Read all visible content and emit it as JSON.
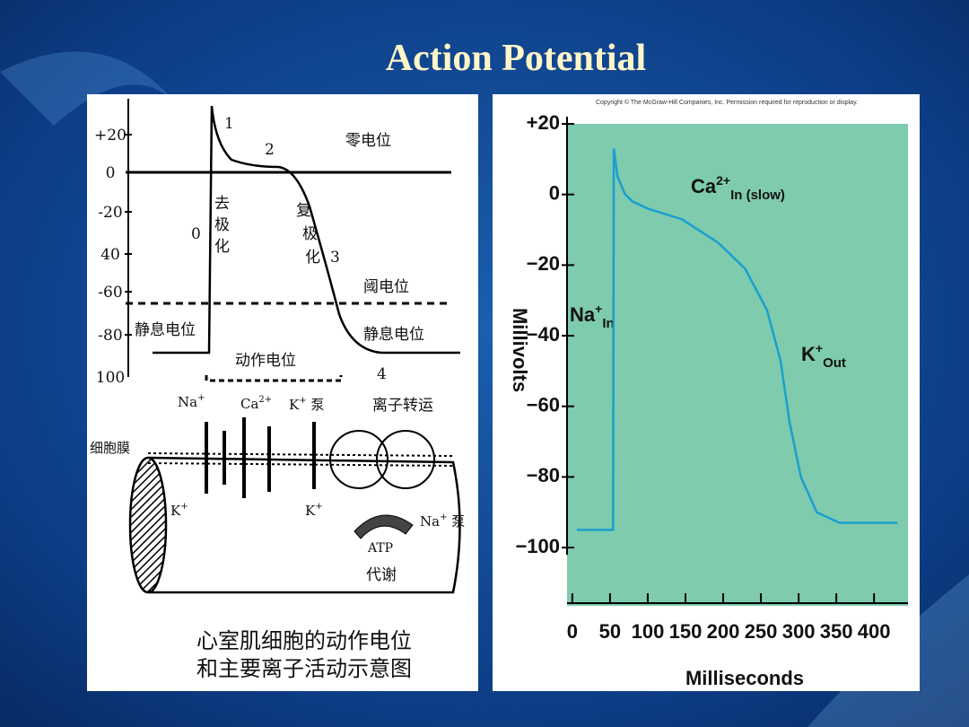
{
  "title": "Action Potential",
  "left_figure": {
    "y_labels": [
      "+20",
      "0",
      "-20",
      "40",
      "-60",
      "-80",
      "100"
    ],
    "phase_labels": [
      "1",
      "2",
      "0",
      "3",
      "4"
    ],
    "zero_potential": "零电位",
    "depolarization": [
      "去",
      "极",
      "化"
    ],
    "repolarization": [
      "复",
      "极",
      "化"
    ],
    "threshold": "阈电位",
    "resting_left": "静息电位",
    "resting_right": "静息电位",
    "action_potential": "动作电位",
    "ion_transport": "离子转运",
    "membrane": "细胞膜",
    "na": {
      "base": "Na",
      "sup": "+"
    },
    "ca": {
      "base": "Ca",
      "sup": "2+"
    },
    "k_pump": {
      "base": "K",
      "sup": "+",
      "rest": " 泵"
    },
    "k_left": {
      "base": "K",
      "sup": "+"
    },
    "k_right": {
      "base": "K",
      "sup": "+"
    },
    "na_pump": {
      "base": "Na",
      "sup": "+",
      "rest": " 泵"
    },
    "atp": "ATP",
    "metabolism": "代谢",
    "caption": [
      "心室肌细胞的动作电位",
      "和主要离子活动示意图"
    ]
  },
  "chart_data": {
    "type": "line",
    "copyright": "Copyright © The McGraw-Hill Companies, Inc. Permission required for reproduction or display.",
    "x_label": "Milliseconds",
    "y_label": "Millivolts",
    "x": [
      6,
      53,
      54,
      55,
      60,
      70,
      80,
      100,
      145,
      193,
      229,
      258,
      276,
      288,
      303,
      324,
      354,
      431
    ],
    "series": [
      {
        "color": "#1a9fd0",
        "values": [
          -95,
          -95,
          -95,
          13,
          5,
          0,
          -2,
          -4,
          -7,
          -13.6,
          -21,
          -32.7,
          -47,
          -64.5,
          -80,
          -90,
          -93,
          -93
        ]
      }
    ],
    "xlim": [
      -7,
      445
    ],
    "ylim": [
      -116.5,
      20
    ],
    "xticks": [
      0,
      50,
      100,
      150,
      200,
      250,
      300,
      350,
      400
    ],
    "yticks": [
      {
        "value": 20,
        "label": "+20"
      },
      0,
      {
        "value": -20,
        "label": "−20"
      },
      {
        "value": -40,
        "label": "−40"
      },
      {
        "value": -60,
        "label": "−60"
      },
      {
        "value": -80,
        "label": "−80"
      },
      {
        "value": -100,
        "label": "−100"
      }
    ],
    "annotations": [
      {
        "base": "Ca",
        "sup": "2+",
        "sub": "In (slow)"
      },
      {
        "base": "Na",
        "sup": "+",
        "sub": "In"
      },
      {
        "base": "K",
        "sup": "+",
        "sub": "Out"
      }
    ]
  }
}
